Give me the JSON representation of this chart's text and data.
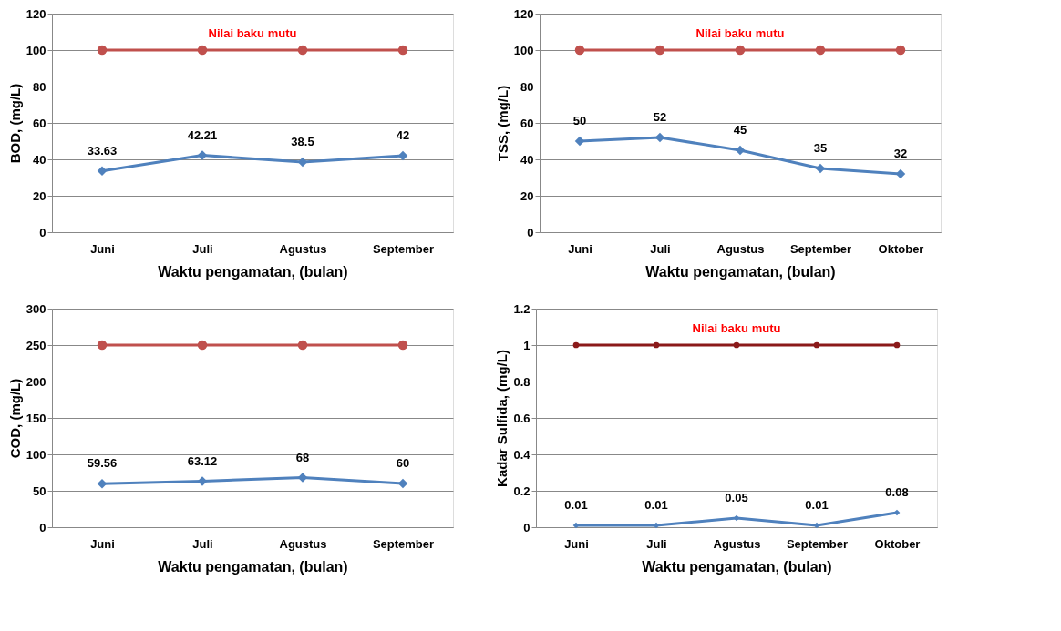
{
  "chart_data": [
    {
      "type": "line",
      "categories": [
        "Juni",
        "Juli",
        "Agustus",
        "September"
      ],
      "xlabel": "Waktu pengamatan, (bulan)",
      "ylabel": "BOD, (mg/L)",
      "ylim": [
        0,
        120
      ],
      "yticks": [
        0,
        20,
        40,
        60,
        80,
        100,
        120
      ],
      "grid": "y",
      "series": [
        {
          "name": "Nilai baku mutu",
          "color": "#c0504d",
          "marker": "circle",
          "values": [
            100,
            100,
            100,
            100
          ]
        },
        {
          "color": "#4f81bd",
          "marker": "diamond",
          "values": [
            33.63,
            42.21,
            38.5,
            42
          ],
          "value_labels": [
            "33.63",
            "42.21",
            "38.5",
            "42"
          ]
        }
      ]
    },
    {
      "type": "line",
      "categories": [
        "Juni",
        "Juli",
        "Agustus",
        "September",
        "Oktober"
      ],
      "xlabel": "Waktu pengamatan, (bulan)",
      "ylabel": "TSS, (mg/L)",
      "ylim": [
        0,
        120
      ],
      "yticks": [
        0,
        20,
        40,
        60,
        80,
        100,
        120
      ],
      "grid": "y",
      "series": [
        {
          "name": "Nilai baku mutu",
          "color": "#c0504d",
          "marker": "circle",
          "values": [
            100,
            100,
            100,
            100,
            100
          ]
        },
        {
          "color": "#4f81bd",
          "marker": "diamond",
          "values": [
            50,
            52,
            45,
            35,
            32
          ],
          "value_labels": [
            "50",
            "52",
            "45",
            "35",
            "32"
          ]
        }
      ]
    },
    {
      "type": "line",
      "categories": [
        "Juni",
        "Juli",
        "Agustus",
        "September"
      ],
      "xlabel": "Waktu pengamatan, (bulan)",
      "ylabel": "COD, (mg/L)",
      "ylim": [
        0,
        300
      ],
      "yticks": [
        0,
        50,
        100,
        150,
        200,
        250,
        300
      ],
      "grid": "y",
      "series": [
        {
          "color": "#c0504d",
          "marker": "circle",
          "values": [
            250,
            250,
            250,
            250
          ]
        },
        {
          "color": "#4f81bd",
          "marker": "diamond",
          "values": [
            59.56,
            63.12,
            68,
            60
          ],
          "value_labels": [
            "59.56",
            "63.12",
            "68",
            "60"
          ]
        }
      ]
    },
    {
      "type": "line",
      "categories": [
        "Juni",
        "Juli",
        "Agustus",
        "September",
        "Oktober"
      ],
      "xlabel": "Waktu pengamatan, (bulan)",
      "ylabel": "Kadar Sulfida, (mg/L)",
      "ylim": [
        0,
        1.2
      ],
      "yticks": [
        0,
        0.2,
        0.4,
        0.6,
        0.8,
        1,
        1.2
      ],
      "grid": "y",
      "series": [
        {
          "name": "Nilai baku mutu",
          "color": "#8b1a1a",
          "marker": "circle",
          "values": [
            1,
            1,
            1,
            1,
            1
          ]
        },
        {
          "color": "#4f81bd",
          "marker": "diamond",
          "values": [
            0.01,
            0.01,
            0.05,
            0.01,
            0.08
          ],
          "value_labels": [
            "0.01",
            "0.01",
            "0.05",
            "0.01",
            "0.08"
          ]
        }
      ]
    }
  ]
}
